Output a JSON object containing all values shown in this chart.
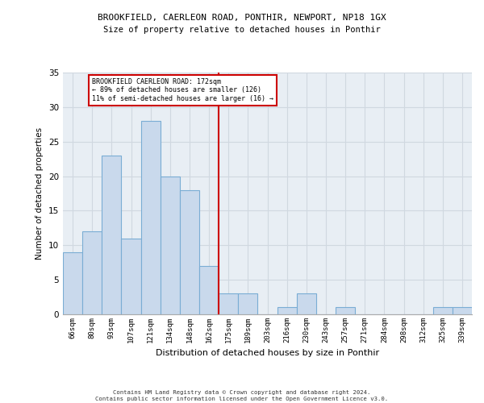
{
  "title1": "BROOKFIELD, CAERLEON ROAD, PONTHIR, NEWPORT, NP18 1GX",
  "title2": "Size of property relative to detached houses in Ponthir",
  "xlabel": "Distribution of detached houses by size in Ponthir",
  "ylabel": "Number of detached properties",
  "footnote": "Contains HM Land Registry data © Crown copyright and database right 2024.\nContains public sector information licensed under the Open Government Licence v3.0.",
  "categories": [
    "66sqm",
    "80sqm",
    "93sqm",
    "107sqm",
    "121sqm",
    "134sqm",
    "148sqm",
    "162sqm",
    "175sqm",
    "189sqm",
    "203sqm",
    "216sqm",
    "230sqm",
    "243sqm",
    "257sqm",
    "271sqm",
    "284sqm",
    "298sqm",
    "312sqm",
    "325sqm",
    "339sqm"
  ],
  "values": [
    9,
    12,
    23,
    11,
    28,
    20,
    18,
    7,
    3,
    3,
    0,
    1,
    3,
    0,
    1,
    0,
    0,
    0,
    0,
    1,
    1
  ],
  "bar_color": "#c9d9ec",
  "bar_edge_color": "#7aadd4",
  "red_line_index": 8,
  "annotation_text": "BROOKFIELD CAERLEON ROAD: 172sqm\n← 89% of detached houses are smaller (126)\n11% of semi-detached houses are larger (16) →",
  "annotation_box_color": "#ffffff",
  "annotation_box_edge": "#cc0000",
  "red_line_color": "#cc0000",
  "grid_color": "#d0d8e0",
  "background_color": "#e8eef4",
  "ylim": [
    0,
    35
  ],
  "yticks": [
    0,
    5,
    10,
    15,
    20,
    25,
    30,
    35
  ]
}
